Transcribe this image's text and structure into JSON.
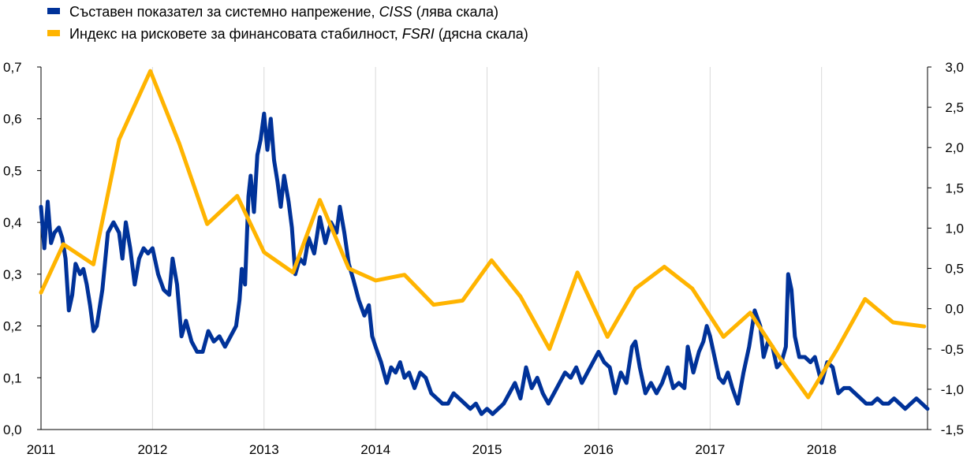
{
  "chart_data": {
    "type": "line",
    "legend": [
      {
        "prefix": "Съставен показател за системно напрежение, ",
        "italic": "CISS",
        "suffix": " (лява скала)",
        "color": "#003299"
      },
      {
        "prefix": "Индекс на рисковете за финансовата стабилност, ",
        "italic": "FSRI",
        "suffix": " (дясна скала)",
        "color": "#FFB400"
      }
    ],
    "x_ticks": [
      "2011",
      "2012",
      "2013",
      "2014",
      "2015",
      "2016",
      "2017",
      "2018"
    ],
    "xlim": [
      2011,
      2018.95
    ],
    "y_left": {
      "ticks": [
        "0,0",
        "0,1",
        "0,2",
        "0,3",
        "0,4",
        "0,5",
        "0,6",
        "0,7"
      ],
      "lim": [
        0,
        0.7
      ]
    },
    "y_right": {
      "ticks": [
        "-1,5",
        "-1,0",
        "-0,5",
        "0,0",
        "0,5",
        "1,0",
        "1,5",
        "2,0",
        "2,5",
        "3,0"
      ],
      "lim": [
        -1.5,
        3.0
      ]
    },
    "grid": "vertical",
    "series": [
      {
        "name": "CISS",
        "axis": "left",
        "color": "#003299",
        "points": [
          [
            2011.0,
            0.43
          ],
          [
            2011.03,
            0.35
          ],
          [
            2011.06,
            0.44
          ],
          [
            2011.09,
            0.36
          ],
          [
            2011.12,
            0.38
          ],
          [
            2011.16,
            0.39
          ],
          [
            2011.19,
            0.37
          ],
          [
            2011.22,
            0.33
          ],
          [
            2011.25,
            0.23
          ],
          [
            2011.28,
            0.26
          ],
          [
            2011.31,
            0.32
          ],
          [
            2011.35,
            0.3
          ],
          [
            2011.38,
            0.31
          ],
          [
            2011.41,
            0.28
          ],
          [
            2011.44,
            0.24
          ],
          [
            2011.47,
            0.19
          ],
          [
            2011.5,
            0.2
          ],
          [
            2011.55,
            0.27
          ],
          [
            2011.6,
            0.38
          ],
          [
            2011.65,
            0.4
          ],
          [
            2011.7,
            0.38
          ],
          [
            2011.73,
            0.33
          ],
          [
            2011.76,
            0.4
          ],
          [
            2011.8,
            0.35
          ],
          [
            2011.84,
            0.28
          ],
          [
            2011.88,
            0.33
          ],
          [
            2011.92,
            0.35
          ],
          [
            2011.96,
            0.34
          ],
          [
            2012.0,
            0.35
          ],
          [
            2012.05,
            0.3
          ],
          [
            2012.1,
            0.27
          ],
          [
            2012.15,
            0.26
          ],
          [
            2012.18,
            0.33
          ],
          [
            2012.22,
            0.28
          ],
          [
            2012.26,
            0.18
          ],
          [
            2012.3,
            0.21
          ],
          [
            2012.35,
            0.17
          ],
          [
            2012.4,
            0.15
          ],
          [
            2012.45,
            0.15
          ],
          [
            2012.5,
            0.19
          ],
          [
            2012.55,
            0.17
          ],
          [
            2012.6,
            0.18
          ],
          [
            2012.65,
            0.16
          ],
          [
            2012.7,
            0.18
          ],
          [
            2012.75,
            0.2
          ],
          [
            2012.78,
            0.25
          ],
          [
            2012.8,
            0.31
          ],
          [
            2012.83,
            0.28
          ],
          [
            2012.86,
            0.45
          ],
          [
            2012.88,
            0.49
          ],
          [
            2012.91,
            0.42
          ],
          [
            2012.94,
            0.53
          ],
          [
            2012.97,
            0.56
          ],
          [
            2013.0,
            0.61
          ],
          [
            2013.03,
            0.54
          ],
          [
            2013.06,
            0.6
          ],
          [
            2013.09,
            0.52
          ],
          [
            2013.12,
            0.48
          ],
          [
            2013.15,
            0.43
          ],
          [
            2013.18,
            0.49
          ],
          [
            2013.22,
            0.44
          ],
          [
            2013.25,
            0.39
          ],
          [
            2013.28,
            0.3
          ],
          [
            2013.32,
            0.33
          ],
          [
            2013.36,
            0.32
          ],
          [
            2013.4,
            0.37
          ],
          [
            2013.45,
            0.34
          ],
          [
            2013.5,
            0.41
          ],
          [
            2013.55,
            0.36
          ],
          [
            2013.6,
            0.4
          ],
          [
            2013.65,
            0.38
          ],
          [
            2013.68,
            0.43
          ],
          [
            2013.72,
            0.38
          ],
          [
            2013.76,
            0.32
          ],
          [
            2013.8,
            0.29
          ],
          [
            2013.85,
            0.25
          ],
          [
            2013.9,
            0.22
          ],
          [
            2013.94,
            0.24
          ],
          [
            2013.97,
            0.18
          ],
          [
            2014.0,
            0.16
          ],
          [
            2014.05,
            0.13
          ],
          [
            2014.1,
            0.09
          ],
          [
            2014.14,
            0.12
          ],
          [
            2014.18,
            0.11
          ],
          [
            2014.22,
            0.13
          ],
          [
            2014.26,
            0.1
          ],
          [
            2014.3,
            0.11
          ],
          [
            2014.35,
            0.08
          ],
          [
            2014.4,
            0.11
          ],
          [
            2014.45,
            0.1
          ],
          [
            2014.5,
            0.07
          ],
          [
            2014.55,
            0.06
          ],
          [
            2014.6,
            0.05
          ],
          [
            2014.65,
            0.05
          ],
          [
            2014.7,
            0.07
          ],
          [
            2014.75,
            0.06
          ],
          [
            2014.8,
            0.05
          ],
          [
            2014.85,
            0.04
          ],
          [
            2014.9,
            0.05
          ],
          [
            2014.95,
            0.03
          ],
          [
            2015.0,
            0.04
          ],
          [
            2015.05,
            0.03
          ],
          [
            2015.1,
            0.04
          ],
          [
            2015.15,
            0.05
          ],
          [
            2015.2,
            0.07
          ],
          [
            2015.25,
            0.09
          ],
          [
            2015.3,
            0.06
          ],
          [
            2015.35,
            0.12
          ],
          [
            2015.4,
            0.08
          ],
          [
            2015.45,
            0.1
          ],
          [
            2015.5,
            0.07
          ],
          [
            2015.55,
            0.05
          ],
          [
            2015.6,
            0.07
          ],
          [
            2015.65,
            0.09
          ],
          [
            2015.7,
            0.11
          ],
          [
            2015.75,
            0.1
          ],
          [
            2015.8,
            0.12
          ],
          [
            2015.85,
            0.09
          ],
          [
            2015.9,
            0.11
          ],
          [
            2015.95,
            0.13
          ],
          [
            2016.0,
            0.15
          ],
          [
            2016.05,
            0.13
          ],
          [
            2016.1,
            0.12
          ],
          [
            2016.15,
            0.07
          ],
          [
            2016.2,
            0.11
          ],
          [
            2016.25,
            0.09
          ],
          [
            2016.3,
            0.16
          ],
          [
            2016.33,
            0.17
          ],
          [
            2016.37,
            0.12
          ],
          [
            2016.42,
            0.07
          ],
          [
            2016.47,
            0.09
          ],
          [
            2016.52,
            0.07
          ],
          [
            2016.57,
            0.09
          ],
          [
            2016.62,
            0.12
          ],
          [
            2016.67,
            0.08
          ],
          [
            2016.72,
            0.09
          ],
          [
            2016.77,
            0.08
          ],
          [
            2016.8,
            0.16
          ],
          [
            2016.85,
            0.11
          ],
          [
            2016.9,
            0.15
          ],
          [
            2016.94,
            0.17
          ],
          [
            2016.97,
            0.2
          ],
          [
            2017.0,
            0.18
          ],
          [
            2017.04,
            0.14
          ],
          [
            2017.08,
            0.1
          ],
          [
            2017.12,
            0.09
          ],
          [
            2017.16,
            0.11
          ],
          [
            2017.2,
            0.08
          ],
          [
            2017.25,
            0.05
          ],
          [
            2017.3,
            0.11
          ],
          [
            2017.35,
            0.16
          ],
          [
            2017.4,
            0.23
          ],
          [
            2017.45,
            0.2
          ],
          [
            2017.48,
            0.14
          ],
          [
            2017.52,
            0.17
          ],
          [
            2017.56,
            0.16
          ],
          [
            2017.6,
            0.12
          ],
          [
            2017.64,
            0.13
          ],
          [
            2017.68,
            0.16
          ],
          [
            2017.7,
            0.3
          ],
          [
            2017.73,
            0.27
          ],
          [
            2017.76,
            0.18
          ],
          [
            2017.8,
            0.14
          ],
          [
            2017.85,
            0.14
          ],
          [
            2017.9,
            0.13
          ],
          [
            2017.94,
            0.14
          ],
          [
            2018.0,
            0.09
          ],
          [
            2018.05,
            0.13
          ],
          [
            2018.1,
            0.12
          ],
          [
            2018.15,
            0.07
          ],
          [
            2018.2,
            0.08
          ],
          [
            2018.25,
            0.08
          ],
          [
            2018.3,
            0.07
          ],
          [
            2018.35,
            0.06
          ],
          [
            2018.4,
            0.05
          ],
          [
            2018.45,
            0.05
          ],
          [
            2018.5,
            0.06
          ],
          [
            2018.55,
            0.05
          ],
          [
            2018.6,
            0.05
          ],
          [
            2018.65,
            0.06
          ],
          [
            2018.7,
            0.05
          ],
          [
            2018.75,
            0.04
          ],
          [
            2018.8,
            0.05
          ],
          [
            2018.85,
            0.06
          ],
          [
            2018.9,
            0.05
          ],
          [
            2018.95,
            0.04
          ]
        ]
      },
      {
        "name": "FSRI",
        "axis": "right",
        "color": "#FFB400",
        "points": [
          [
            2011.0,
            0.2
          ],
          [
            2011.2,
            0.8
          ],
          [
            2011.47,
            0.55
          ],
          [
            2011.7,
            2.1
          ],
          [
            2011.98,
            2.95
          ],
          [
            2012.24,
            2.05
          ],
          [
            2012.49,
            1.05
          ],
          [
            2012.76,
            1.4
          ],
          [
            2013.0,
            0.7
          ],
          [
            2013.26,
            0.45
          ],
          [
            2013.5,
            1.35
          ],
          [
            2013.76,
            0.5
          ],
          [
            2014.0,
            0.35
          ],
          [
            2014.26,
            0.42
          ],
          [
            2014.52,
            0.05
          ],
          [
            2014.78,
            0.1
          ],
          [
            2015.04,
            0.6
          ],
          [
            2015.3,
            0.15
          ],
          [
            2015.56,
            -0.5
          ],
          [
            2015.81,
            0.45
          ],
          [
            2016.08,
            -0.35
          ],
          [
            2016.33,
            0.25
          ],
          [
            2016.59,
            0.52
          ],
          [
            2016.84,
            0.25
          ],
          [
            2017.12,
            -0.35
          ],
          [
            2017.36,
            -0.05
          ],
          [
            2017.62,
            -0.6
          ],
          [
            2017.88,
            -1.1
          ],
          [
            2018.14,
            -0.5
          ],
          [
            2018.39,
            0.12
          ],
          [
            2018.64,
            -0.17
          ],
          [
            2018.92,
            -0.22
          ]
        ]
      }
    ]
  }
}
